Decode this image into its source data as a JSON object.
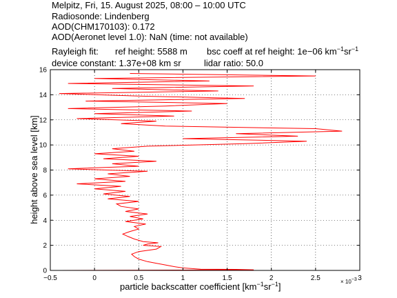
{
  "header": {
    "line1": "Melpitz, Fri, 15. August 2025, 08:00 – 10:00 UTC",
    "line2": "Radiosonde: Lindenberg",
    "line3": "AOD(CHM170103): 0.172",
    "line4": "AOD(Aeronet level 1.0): NaN   (time: not available)",
    "rayleigh_label": "Rayleigh fit:",
    "ref_height": "ref height: 5588 m",
    "bsc_coeff_prefix": "bsc coeff at ref height: 1e−06 km",
    "unit_exp_km": "−1",
    "unit_sr": "sr",
    "unit_exp_sr": "−1",
    "device_constant": "device constant: 1.37e+08 km sr",
    "lidar_ratio": "lidar ratio: 50.0"
  },
  "chart_data": {
    "type": "line",
    "title": "",
    "xlabel_prefix": "particle backscatter coefficient [km",
    "xlabel_exp1": "−1",
    "xlabel_mid": "sr",
    "xlabel_exp2": "−1",
    "xlabel_suffix": "]",
    "ylabel": "height above sea level [km]",
    "x_multiplier_base": "× 10",
    "x_multiplier_exp": "−3",
    "xlim": [
      -0.5,
      3.0
    ],
    "ylim": [
      0,
      16
    ],
    "grid": true,
    "xticks": [
      -0.5,
      0,
      0.5,
      1,
      1.5,
      2,
      2.5,
      3
    ],
    "xtick_labels": [
      "−0.5",
      "0",
      "0.5",
      "1",
      "1.5",
      "2",
      "2.5",
      "3"
    ],
    "yticks": [
      0,
      2,
      4,
      6,
      8,
      10,
      12,
      14,
      16
    ],
    "ytick_labels": [
      "0",
      "2",
      "4",
      "6",
      "8",
      "10",
      "12",
      "14",
      "16"
    ],
    "series": [
      {
        "color": "#ff0000",
        "y": [
          0.0,
          0.05,
          0.08,
          0.1,
          0.2,
          0.3,
          0.5,
          0.7,
          0.9,
          1.1,
          1.3,
          1.5,
          1.7,
          1.9,
          2.0,
          2.1,
          2.2,
          2.3,
          2.5,
          2.7,
          2.9,
          3.1,
          3.3,
          3.5,
          3.7,
          3.9,
          4.1,
          4.3,
          4.5,
          4.7,
          4.9,
          5.1,
          5.3,
          5.5,
          5.7,
          5.9,
          6.1,
          6.3,
          6.5,
          6.7,
          6.9,
          7.1,
          7.3,
          7.5,
          7.7,
          7.9,
          8.1,
          8.3,
          8.5,
          8.7,
          8.9,
          9.1,
          9.3,
          9.5,
          9.7,
          9.9,
          10.1,
          10.3,
          10.5,
          10.7,
          10.9,
          11.1,
          11.3,
          11.5,
          11.7,
          11.9,
          12.1,
          12.3,
          12.5,
          12.7,
          12.9,
          13.1,
          13.3,
          13.5,
          13.7,
          13.9,
          14.1,
          14.3,
          14.5,
          14.7,
          14.9,
          15.1,
          15.3,
          15.5,
          15.7
        ],
        "x": [
          -0.4,
          1.8,
          1.6,
          1.2,
          1.0,
          0.9,
          0.75,
          0.6,
          0.5,
          0.45,
          0.42,
          0.5,
          0.7,
          0.75,
          0.55,
          0.6,
          0.72,
          0.55,
          0.45,
          0.38,
          0.32,
          0.4,
          0.5,
          0.45,
          0.58,
          0.35,
          0.55,
          0.4,
          0.6,
          0.35,
          0.5,
          0.3,
          0.25,
          0.5,
          0.15,
          0.4,
          0.1,
          0.35,
          0.0,
          0.3,
          -0.2,
          0.35,
          0.0,
          0.4,
          0.15,
          0.6,
          -0.3,
          0.5,
          0.2,
          0.7,
          0.1,
          0.5,
          0.0,
          0.45,
          0.2,
          0.6,
          1.7,
          2.4,
          1.0,
          2.3,
          1.6,
          2.8,
          2.5,
          0.8,
          0.3,
          0.7,
          -0.2,
          0.9,
          0.0,
          1.1,
          -0.3,
          0.8,
          1.5,
          -0.1,
          1.7,
          0.5,
          -0.4,
          1.4,
          0.2,
          1.8,
          -0.3,
          1.3,
          0.0,
          2.5,
          0.4
        ]
      }
    ]
  }
}
